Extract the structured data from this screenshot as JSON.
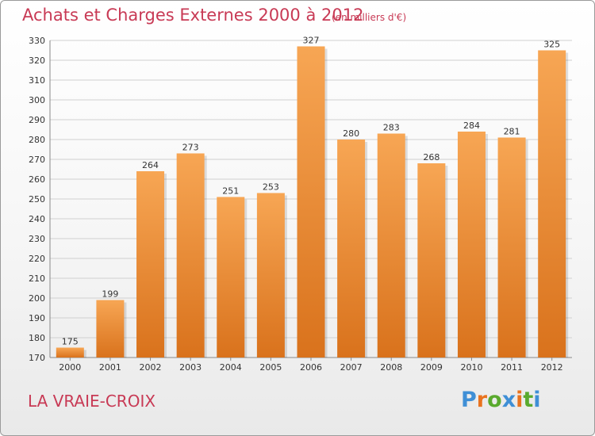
{
  "chart_data": {
    "type": "bar",
    "title": "Achats et Charges Externes 2000 à 2012",
    "subtitle": "(en milliers d'€)",
    "categories": [
      "2000",
      "2001",
      "2002",
      "2003",
      "2004",
      "2005",
      "2006",
      "2007",
      "2008",
      "2009",
      "2010",
      "2011",
      "2012"
    ],
    "values": [
      175,
      199,
      264,
      273,
      251,
      253,
      327,
      280,
      283,
      268,
      284,
      281,
      325
    ],
    "ylim": [
      170,
      330
    ],
    "yticks": [
      170,
      180,
      190,
      200,
      210,
      220,
      230,
      240,
      250,
      260,
      270,
      280,
      290,
      300,
      310,
      320,
      330
    ],
    "grid": true,
    "colors": {
      "bar_light": "#f7a654",
      "bar_dark": "#d9721c",
      "grid": "#d0d0d0",
      "text_accent": "#c83a55"
    }
  },
  "footer": {
    "location": "LA VRAIE-CROIX",
    "logo": "Proxiti"
  },
  "logo_colors": [
    "#3f8fd6",
    "#e9731f",
    "#5aaa2e",
    "#3f8fd6",
    "#e9731f",
    "#5aaa2e",
    "#3f8fd6"
  ]
}
